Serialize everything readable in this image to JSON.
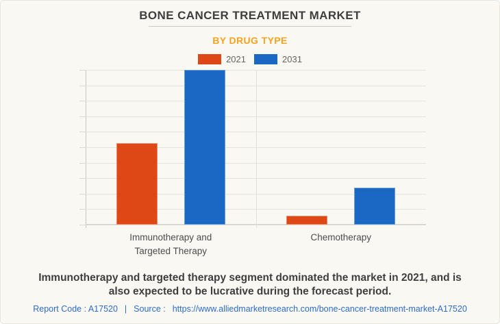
{
  "header": {
    "title": "BONE CANCER TREATMENT MARKET",
    "subtitle": "BY DRUG TYPE",
    "subtitle_color": "#f7a21f",
    "title_color": "#3e3e3e"
  },
  "chart_data": {
    "type": "bar",
    "title": "Bone Cancer Treatment Market by Drug Type",
    "categories": [
      "Immunotherapy and Targeted Therapy",
      "Chemotherapy"
    ],
    "series": [
      {
        "name": "2021",
        "color": "#de4817",
        "values": [
          52.5,
          5.8
        ]
      },
      {
        "name": "2031",
        "color": "#1a68c4",
        "values": [
          100,
          24
        ]
      }
    ],
    "value_note": "Y axis is unlabeled; values are bar heights read as percent of the chart maximum (the 2031 Immunotherapy and Targeted Therapy bar spans the full plot height).",
    "xlabel": "",
    "ylabel": "",
    "ylim": [
      0,
      100
    ],
    "grid": "horizontal",
    "gridline_intervals": 10,
    "legend_position": "top",
    "background_color": "#faf8f2"
  },
  "summary": {
    "text": "Immunotherapy and targeted therapy segment dominated the market in 2021, and is also expected to be lucrative during the forecast period."
  },
  "footer": {
    "report_code": "Report Code : A17520",
    "separator": "|",
    "source_label": "Source :",
    "source_url": "https://www.alliedmarketresearch.com/bone-cancer-treatment-market-A17520",
    "link_color": "#2d6bc9"
  }
}
